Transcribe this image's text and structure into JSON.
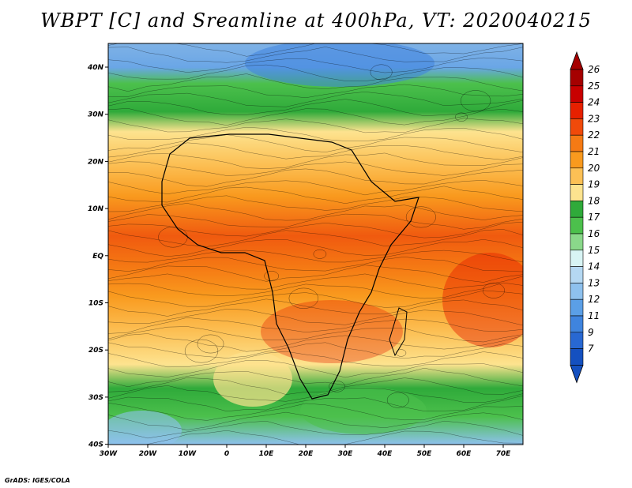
{
  "title": "WBPT [C] and Sreamline at 400hPa, VT: 2020040215",
  "credit": "GrADS: IGES/COLA",
  "map": {
    "lon_ticks": [
      "30W",
      "20W",
      "10W",
      "0",
      "10E",
      "20E",
      "30E",
      "40E",
      "50E",
      "60E",
      "70E"
    ],
    "lat_ticks": [
      "40N",
      "30N",
      "20N",
      "10N",
      "EQ",
      "10S",
      "20S",
      "30S",
      "40S"
    ]
  },
  "colorbar": {
    "labels": [
      "26",
      "25",
      "24",
      "23",
      "22",
      "21",
      "20",
      "19",
      "18",
      "17",
      "16",
      "15",
      "14",
      "13",
      "12",
      "11",
      "9",
      "7"
    ],
    "colors": [
      "#a50000",
      "#c80000",
      "#e62000",
      "#f04a0a",
      "#f57a14",
      "#f99a1e",
      "#fcc055",
      "#fde38f",
      "#2faa3a",
      "#4cc04c",
      "#8ad88a",
      "#d8f4f4",
      "#b5d8f2",
      "#8ec1ee",
      "#5b9fe6",
      "#3f84de",
      "#2868d2",
      "#1450c0"
    ]
  }
}
